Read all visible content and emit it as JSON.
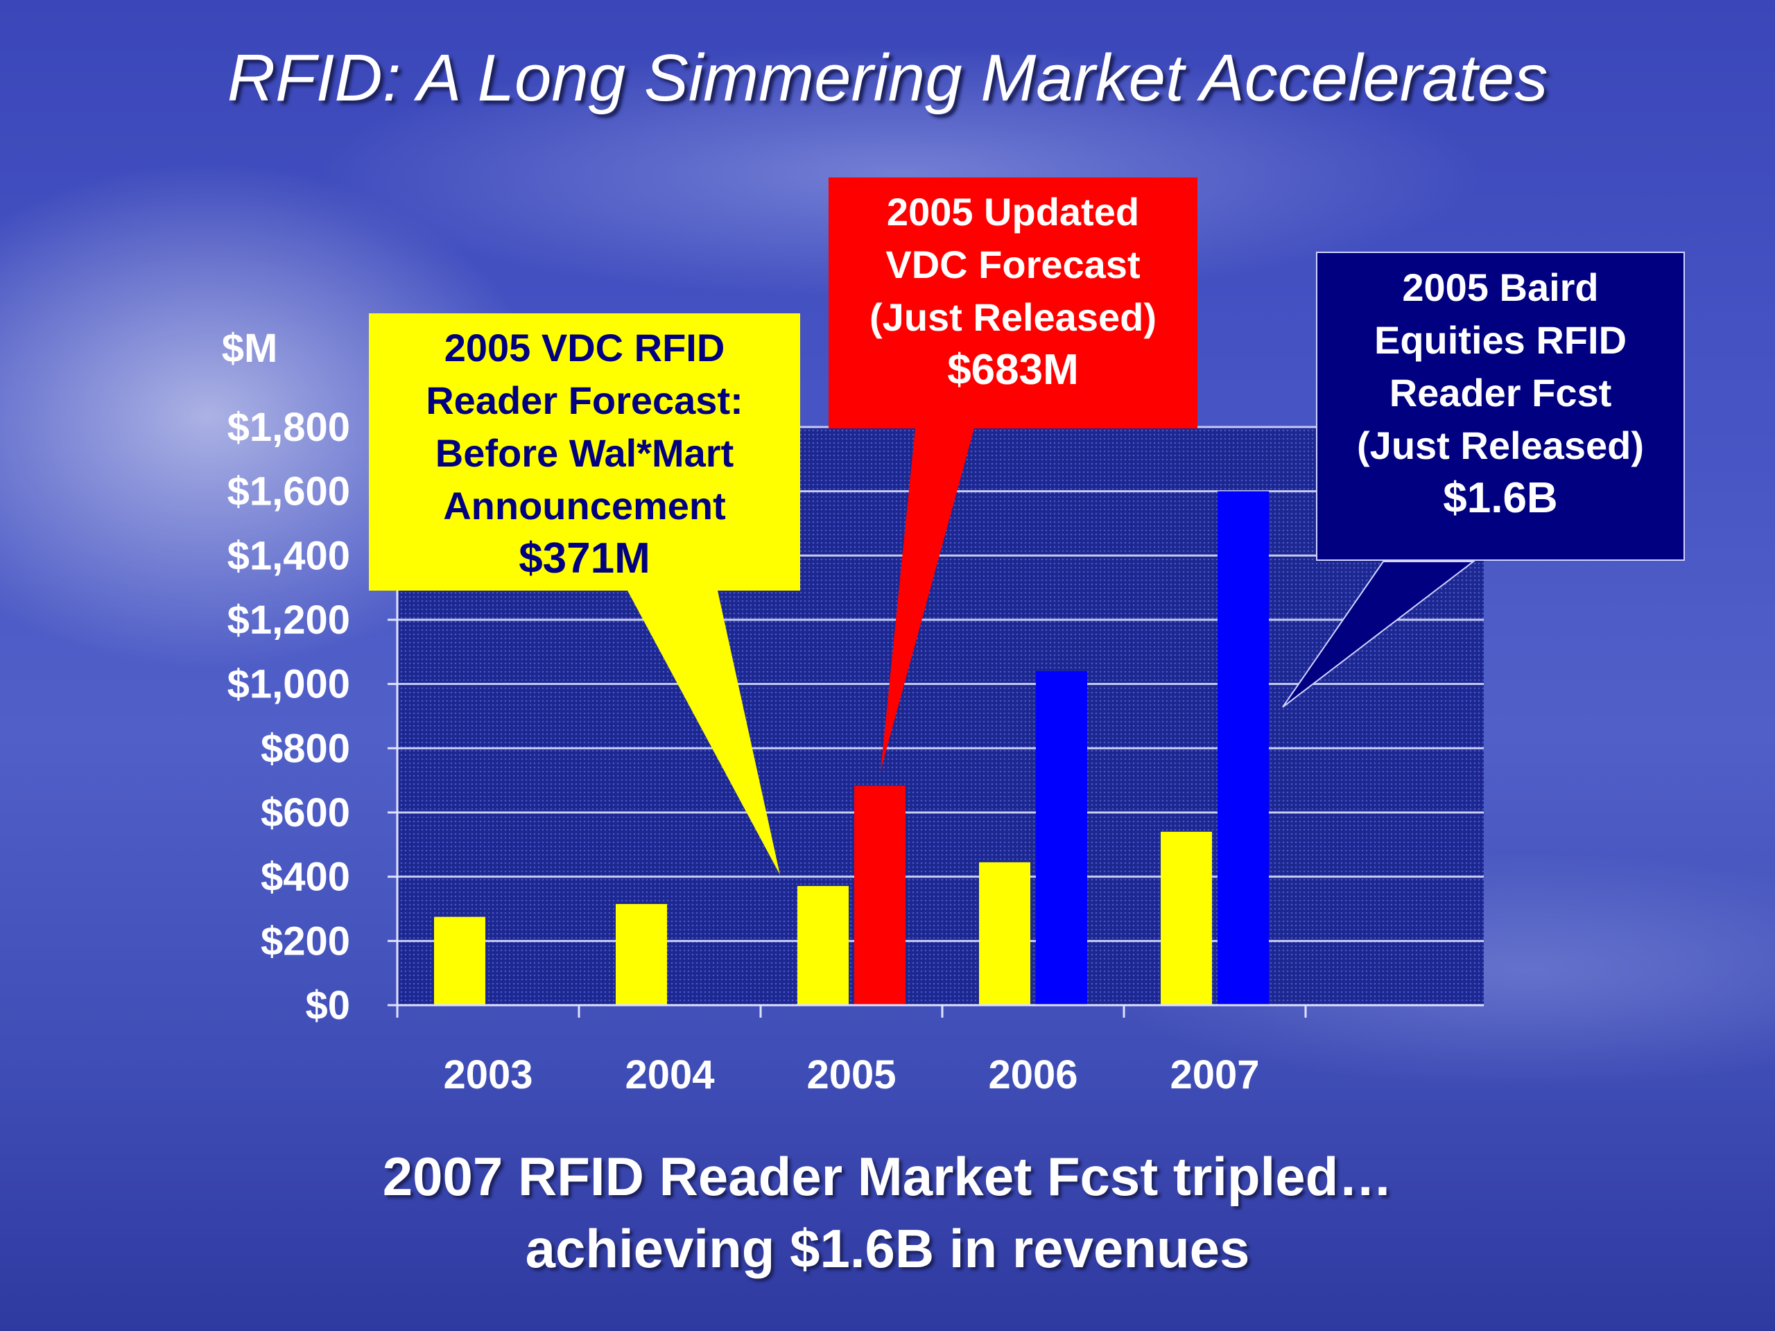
{
  "slide": {
    "title": "RFID: A Long Simmering Market Accelerates",
    "summary_line1": "2007 RFID Reader Market Fcst tripled…",
    "summary_line2": "achieving $1.6B in revenues"
  },
  "callouts": {
    "vdc_original": {
      "lines": [
        "2005 VDC RFID",
        "Reader Forecast:",
        "Before Wal*Mart",
        "Announcement"
      ],
      "value": "$371M",
      "color": "#ffff00",
      "text_color": "#000080"
    },
    "vdc_updated": {
      "lines": [
        "2005 Updated",
        "VDC Forecast",
        "(Just Released)"
      ],
      "value": "$683M",
      "color": "#ff0000",
      "text_color": "#ffffff"
    },
    "baird": {
      "lines": [
        "2005 Baird",
        "Equities RFID",
        "Reader Fcst",
        "(Just Released)"
      ],
      "value": "$1.6B",
      "color": "#000080",
      "text_color": "#ffffff"
    }
  },
  "chart_data": {
    "type": "bar",
    "title": "",
    "xlabel": "",
    "ylabel": "$M",
    "ylim": [
      0,
      1800
    ],
    "yticks": [
      0,
      200,
      400,
      600,
      800,
      1000,
      1200,
      1400,
      1600,
      1800
    ],
    "ytick_labels": [
      "$0",
      "$200",
      "$400",
      "$600",
      "$800",
      "$1,000",
      "$1,200",
      "$1,400",
      "$1,600",
      "$1,800"
    ],
    "categories": [
      "2003",
      "2004",
      "2005",
      "2006",
      "2007"
    ],
    "grid": true,
    "series": [
      {
        "color": "#ffff00",
        "values": [
          275,
          315,
          371,
          445,
          540
        ]
      },
      {
        "color_2005": "#ff0000",
        "color": "#0000ff",
        "values": [
          null,
          null,
          683,
          1040,
          1600
        ]
      }
    ]
  }
}
